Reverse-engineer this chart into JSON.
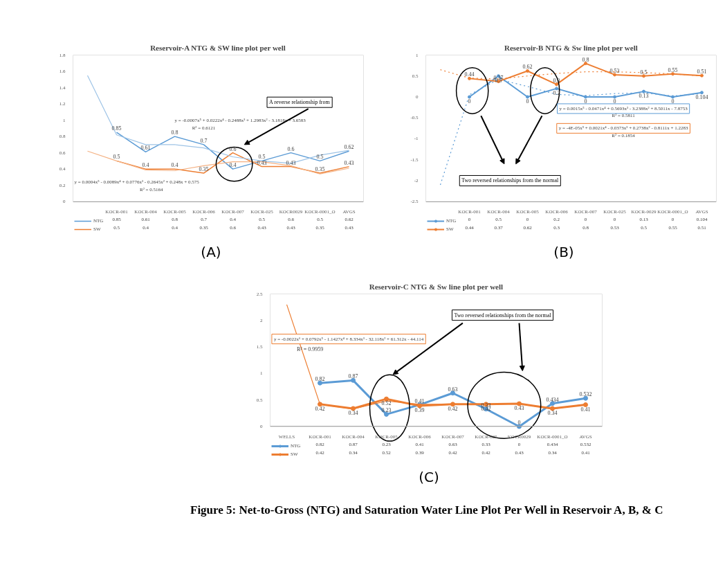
{
  "chart_data": [
    {
      "type": "line",
      "title": "Reservoir-A NTG & SW line plot per well",
      "categories": [
        null,
        "KOCR-001",
        "KOCR-004",
        "KOCR-005",
        "KOCR-006",
        "KOCR-007",
        "KOCR-025",
        "KOCR0029",
        "KOCR-0001_O",
        "AVGS"
      ],
      "series": [
        {
          "name": "NTG",
          "color": "#5b9bd5",
          "values": [
            null,
            0.85,
            0.61,
            0.8,
            0.7,
            0.4,
            0.5,
            0.6,
            0.5,
            0.62
          ],
          "value_labels": [
            null,
            "0.85",
            "0.61",
            "0.8",
            "0.7",
            "0.4",
            "0.5",
            "0.6",
            "0.5",
            "0.62"
          ]
        },
        {
          "name": "SW",
          "color": "#ed7d31",
          "values": [
            null,
            0.5,
            0.4,
            0.4,
            0.35,
            0.6,
            0.43,
            0.43,
            0.35,
            0.43
          ],
          "value_labels": [
            null,
            "0.5",
            "0.4",
            "0.4",
            "0.35",
            "0.6",
            "0.43",
            "0.43",
            "0.35",
            "0.43"
          ]
        },
        {
          "type": "line",
          "color": "#9dc3e6",
          "marker": "none",
          "values": [
            1.55,
            0.82,
            0.7,
            0.7,
            0.66,
            0.55,
            0.5,
            0.47,
            0.57,
            0.63
          ]
        },
        {
          "type": "line",
          "color": "#f4b183",
          "marker": "none",
          "values": [
            0.62,
            0.5,
            0.39,
            0.38,
            0.44,
            0.49,
            0.49,
            0.44,
            0.34,
            0.41
          ]
        }
      ],
      "ylim": [
        0,
        1.8
      ],
      "yticks": [
        0,
        0.2,
        0.4,
        0.6,
        0.8,
        1,
        1.2,
        1.4,
        1.6,
        1.8
      ],
      "grid": false,
      "legend": "bottom",
      "marker": "none",
      "line_style": "solid",
      "annotations": [
        "y = -0.0007x⁵ + 0.0222x⁴ - 0.2488x³ + 1.2983x² - 3.1818x + 3.6583",
        "R² = 0.6121",
        "y = 0.0004x⁵ - 0.0089x⁴ + 0.0776x³ - 0.2645x² + 0.248x + 0.575",
        "R² = 0.5164",
        "A reverse relationship from",
        "(A)"
      ]
    },
    {
      "type": "line",
      "title": "Reservoir-B NTG & Sw line plot per well",
      "categories": [
        null,
        "KOCR-001",
        "KOCR-004",
        "KOCR-005",
        "KOCR-006",
        "KOCR-007",
        "KOCR-025",
        "KOCR-0029",
        "KOCR-0001_O",
        "AVGS"
      ],
      "series": [
        {
          "name": "NTG",
          "color": "#5b9bd5",
          "values": [
            null,
            0,
            0.5,
            0,
            0.2,
            0,
            0,
            0.13,
            0,
            0.104
          ],
          "value_labels": [
            null,
            "0",
            "0.5",
            "0",
            "0.2",
            "0",
            "0",
            "0.13",
            "0",
            "0.104"
          ]
        },
        {
          "name": "SW",
          "color": "#ed7d31",
          "values": [
            null,
            0.44,
            0.37,
            0.62,
            0.3,
            0.8,
            0.53,
            0.5,
            0.55,
            0.51
          ],
          "value_labels": [
            null,
            "0.44",
            "0.37",
            "0.62",
            "0.3",
            "0.8",
            "0.53",
            "0.5",
            "0.55",
            "0.51"
          ]
        },
        {
          "type": "line",
          "color": "#5b9bd5",
          "line_style": "dotted",
          "marker": "none",
          "values": [
            -2.1,
            0.05,
            0.42,
            0.25,
            0.06,
            0.03,
            0.08,
            0.1,
            0.02,
            0.08
          ]
        },
        {
          "type": "line",
          "color": "#ed7d31",
          "line_style": "dotted",
          "marker": "none",
          "values": [
            0.65,
            0.45,
            0.43,
            0.5,
            0.56,
            0.6,
            0.6,
            0.58,
            0.55,
            0.5
          ]
        }
      ],
      "ylim": [
        -2.5,
        1
      ],
      "yticks": [
        -2.5,
        -2,
        -1.5,
        -1,
        -0.5,
        0,
        0.5,
        1
      ],
      "grid": false,
      "legend": "bottom",
      "marker": "circle",
      "line_style": "solid",
      "annotations": [
        "y = -4E-05x⁵ + 0.0021x⁴ - 0.0373x³ + 0.2738x² - 0.8111x + 1.2283",
        "R² = 0.1854",
        "y = 0.0015x⁵ - 0.0471x⁴ + 0.5693x³ - 3.2388x² + 8.5011x - 7.8753",
        "R² = 0.5811",
        "Two reversed relationships from the normal",
        "(B)"
      ]
    },
    {
      "type": "line",
      "title": "Reservoir-C NTG & Sw line plot per well",
      "categories": [
        "WELLS",
        "KOCR-001",
        "KOCR-004",
        "KOCR-005",
        "KOCR-006",
        "KOCR-007",
        "KOCR-025",
        "KOCR0029",
        "KOCR-0001_O",
        "AVGS"
      ],
      "series": [
        {
          "name": "NTG",
          "color": "#5b9bd5",
          "values": [
            null,
            0.82,
            0.87,
            0.23,
            0.41,
            0.63,
            0.33,
            0,
            0.434,
            0.532
          ],
          "value_labels": [
            null,
            "0.82",
            "0.87",
            "0.23",
            "0.41",
            "0.63",
            "0.33",
            "0",
            "0.434",
            "0.532"
          ]
        },
        {
          "name": "SW",
          "color": "#ed7d31",
          "values": [
            null,
            0.42,
            0.34,
            0.52,
            0.39,
            0.42,
            0.42,
            0.43,
            0.34,
            0.41
          ],
          "value_labels": [
            null,
            "0.42",
            "0.34",
            "0.52",
            "0.39",
            "0.42",
            "0.42",
            "0.43",
            "0.34",
            "0.41"
          ]
        },
        {
          "type": "line",
          "color": "#ed7d31",
          "marker": "none",
          "values": [
            2.3,
            0.42,
            0.33,
            0.48,
            0.42,
            0.42,
            0.42,
            0.43,
            0.33,
            0.42
          ]
        }
      ],
      "ylim": [
        0,
        2.5
      ],
      "yticks": [
        0,
        0.5,
        1,
        1.5,
        2,
        2.5
      ],
      "grid": false,
      "legend": "bottom",
      "marker": "circle",
      "line_style": "solid",
      "annotations": [
        "y = -0.0022x⁶ + 0.0792x⁵ - 1.1427x⁴ + 8.334x³ - 32.118x² + 61.312x - 44.114",
        "R² = 0.9959",
        "Two reversed relationships from the normal",
        "(C)",
        "Figure 5: Net-to-Gross (NTG) and Saturation Water Line Plot Per Well in Reservoir A, B, & C"
      ]
    }
  ]
}
